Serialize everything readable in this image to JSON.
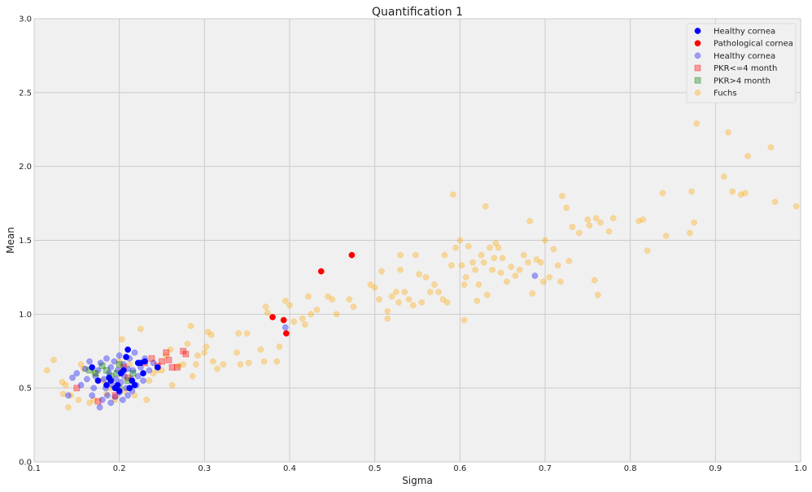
{
  "chart_data": {
    "type": "scatter",
    "title": "Quantification 1",
    "xlabel": "Sigma",
    "ylabel": "Mean",
    "xlim": [
      0.1,
      1.0
    ],
    "ylim": [
      0.0,
      3.0
    ],
    "xticks": [
      "0.1",
      "0.2",
      "0.3",
      "0.4",
      "0.5",
      "0.6",
      "0.7",
      "0.8",
      "0.9",
      "1.0"
    ],
    "yticks": [
      "0.0",
      "0.5",
      "1.0",
      "1.5",
      "2.0",
      "2.5",
      "3.0"
    ],
    "grid": true,
    "legend_position": "top-right",
    "background": "#f0f0f0",
    "series": [
      {
        "name": "Healthy cornea",
        "color": "#0000ff",
        "marker": "circle",
        "opacity": 1.0,
        "points": [
          [
            0.168,
            0.64
          ],
          [
            0.175,
            0.55
          ],
          [
            0.185,
            0.52
          ],
          [
            0.19,
            0.55
          ],
          [
            0.195,
            0.5
          ],
          [
            0.2,
            0.48
          ],
          [
            0.205,
            0.62
          ],
          [
            0.208,
            0.71
          ],
          [
            0.21,
            0.76
          ],
          [
            0.215,
            0.55
          ],
          [
            0.218,
            0.52
          ],
          [
            0.222,
            0.67
          ],
          [
            0.225,
            0.67
          ],
          [
            0.228,
            0.6
          ],
          [
            0.23,
            0.68
          ],
          [
            0.245,
            0.64
          ],
          [
            0.198,
            0.52
          ],
          [
            0.188,
            0.57
          ],
          [
            0.212,
            0.5
          ],
          [
            0.202,
            0.6
          ]
        ]
      },
      {
        "name": "Pathological cornea",
        "color": "#ff0000",
        "marker": "circle",
        "opacity": 1.0,
        "points": [
          [
            0.38,
            0.98
          ],
          [
            0.393,
            0.96
          ],
          [
            0.396,
            0.87
          ],
          [
            0.437,
            1.29
          ],
          [
            0.473,
            1.4
          ]
        ]
      },
      {
        "name": "Healthy cornea",
        "color": "#0000ff",
        "marker": "circle",
        "opacity": 0.35,
        "points": [
          [
            0.14,
            0.45
          ],
          [
            0.145,
            0.57
          ],
          [
            0.15,
            0.6
          ],
          [
            0.155,
            0.52
          ],
          [
            0.16,
            0.63
          ],
          [
            0.162,
            0.56
          ],
          [
            0.165,
            0.68
          ],
          [
            0.168,
            0.45
          ],
          [
            0.17,
            0.5
          ],
          [
            0.172,
            0.58
          ],
          [
            0.175,
            0.62
          ],
          [
            0.177,
            0.37
          ],
          [
            0.178,
            0.67
          ],
          [
            0.18,
            0.42
          ],
          [
            0.182,
            0.56
          ],
          [
            0.184,
            0.5
          ],
          [
            0.185,
            0.7
          ],
          [
            0.186,
            0.45
          ],
          [
            0.188,
            0.6
          ],
          [
            0.19,
            0.64
          ],
          [
            0.19,
            0.4
          ],
          [
            0.192,
            0.52
          ],
          [
            0.194,
            0.68
          ],
          [
            0.195,
            0.44
          ],
          [
            0.196,
            0.56
          ],
          [
            0.198,
            0.62
          ],
          [
            0.2,
            0.47
          ],
          [
            0.2,
            0.72
          ],
          [
            0.202,
            0.54
          ],
          [
            0.204,
            0.42
          ],
          [
            0.205,
            0.66
          ],
          [
            0.206,
            0.58
          ],
          [
            0.208,
            0.5
          ],
          [
            0.21,
            0.63
          ],
          [
            0.21,
            0.45
          ],
          [
            0.212,
            0.7
          ],
          [
            0.214,
            0.56
          ],
          [
            0.215,
            0.48
          ],
          [
            0.216,
            0.62
          ],
          [
            0.218,
            0.74
          ],
          [
            0.22,
            0.52
          ],
          [
            0.222,
            0.58
          ],
          [
            0.225,
            0.64
          ],
          [
            0.228,
            0.55
          ],
          [
            0.23,
            0.7
          ],
          [
            0.235,
            0.62
          ],
          [
            0.24,
            0.67
          ],
          [
            0.395,
            0.91
          ],
          [
            0.688,
            1.26
          ]
        ]
      },
      {
        "name": "PKR<=4 month",
        "color": "#ff0000",
        "marker": "square",
        "opacity": 0.35,
        "points": [
          [
            0.15,
            0.5
          ],
          [
            0.175,
            0.41
          ],
          [
            0.195,
            0.45
          ],
          [
            0.205,
            0.64
          ],
          [
            0.23,
            0.67
          ],
          [
            0.238,
            0.7
          ],
          [
            0.245,
            0.65
          ],
          [
            0.25,
            0.68
          ],
          [
            0.255,
            0.74
          ],
          [
            0.258,
            0.69
          ],
          [
            0.262,
            0.64
          ],
          [
            0.268,
            0.64
          ],
          [
            0.275,
            0.75
          ],
          [
            0.278,
            0.73
          ],
          [
            0.21,
            0.57
          ]
        ]
      },
      {
        "name": "PKR>4 month",
        "color": "#008000",
        "marker": "square",
        "opacity": 0.35,
        "points": [
          [
            0.165,
            0.62
          ],
          [
            0.172,
            0.6
          ],
          [
            0.18,
            0.65
          ],
          [
            0.19,
            0.58
          ],
          [
            0.197,
            0.6
          ],
          [
            0.2,
            0.66
          ],
          [
            0.21,
            0.55
          ],
          [
            0.216,
            0.6
          ],
          [
            0.2,
            0.5
          ],
          [
            0.185,
            0.62
          ]
        ]
      },
      {
        "name": "Fuchs",
        "color": "#ffa500",
        "marker": "circle",
        "opacity": 0.35,
        "points": [
          [
            0.115,
            0.62
          ],
          [
            0.123,
            0.69
          ],
          [
            0.133,
            0.54
          ],
          [
            0.134,
            0.46
          ],
          [
            0.137,
            0.52
          ],
          [
            0.14,
            0.37
          ],
          [
            0.143,
            0.45
          ],
          [
            0.152,
            0.42
          ],
          [
            0.155,
            0.66
          ],
          [
            0.158,
            0.63
          ],
          [
            0.165,
            0.4
          ],
          [
            0.17,
            0.42
          ],
          [
            0.172,
            0.6
          ],
          [
            0.18,
            0.55
          ],
          [
            0.185,
            0.46
          ],
          [
            0.19,
            0.5
          ],
          [
            0.195,
            0.42
          ],
          [
            0.2,
            0.68
          ],
          [
            0.203,
            0.83
          ],
          [
            0.206,
            0.48
          ],
          [
            0.212,
            0.66
          ],
          [
            0.218,
            0.45
          ],
          [
            0.225,
            0.9
          ],
          [
            0.232,
            0.42
          ],
          [
            0.235,
            0.55
          ],
          [
            0.24,
            0.6
          ],
          [
            0.245,
            0.62
          ],
          [
            0.25,
            0.62
          ],
          [
            0.255,
            0.72
          ],
          [
            0.26,
            0.76
          ],
          [
            0.262,
            0.52
          ],
          [
            0.27,
            0.65
          ],
          [
            0.275,
            0.66
          ],
          [
            0.28,
            0.8
          ],
          [
            0.284,
            0.92
          ],
          [
            0.286,
            0.58
          ],
          [
            0.29,
            0.66
          ],
          [
            0.292,
            0.72
          ],
          [
            0.3,
            0.74
          ],
          [
            0.302,
            0.78
          ],
          [
            0.304,
            0.88
          ],
          [
            0.308,
            0.86
          ],
          [
            0.31,
            0.68
          ],
          [
            0.315,
            0.63
          ],
          [
            0.322,
            0.66
          ],
          [
            0.338,
            0.74
          ],
          [
            0.34,
            0.87
          ],
          [
            0.342,
            0.66
          ],
          [
            0.35,
            0.87
          ],
          [
            0.352,
            0.67
          ],
          [
            0.366,
            0.76
          ],
          [
            0.37,
            0.68
          ],
          [
            0.372,
            1.05
          ],
          [
            0.374,
            1.01
          ],
          [
            0.385,
            0.68
          ],
          [
            0.388,
            0.78
          ],
          [
            0.395,
            1.09
          ],
          [
            0.4,
            1.06
          ],
          [
            0.405,
            0.95
          ],
          [
            0.415,
            0.97
          ],
          [
            0.418,
            0.93
          ],
          [
            0.422,
            1.12
          ],
          [
            0.425,
            1.0
          ],
          [
            0.432,
            1.03
          ],
          [
            0.445,
            1.12
          ],
          [
            0.45,
            1.1
          ],
          [
            0.455,
            1.0
          ],
          [
            0.47,
            1.1
          ],
          [
            0.475,
            1.05
          ],
          [
            0.495,
            1.2
          ],
          [
            0.5,
            1.18
          ],
          [
            0.505,
            1.1
          ],
          [
            0.508,
            1.29
          ],
          [
            0.515,
            0.97
          ],
          [
            0.515,
            1.02
          ],
          [
            0.52,
            1.12
          ],
          [
            0.525,
            1.15
          ],
          [
            0.528,
            1.08
          ],
          [
            0.53,
            1.3
          ],
          [
            0.53,
            1.4
          ],
          [
            0.535,
            1.15
          ],
          [
            0.54,
            1.1
          ],
          [
            0.545,
            1.06
          ],
          [
            0.548,
            1.4
          ],
          [
            0.552,
            1.27
          ],
          [
            0.555,
            1.08
          ],
          [
            0.56,
            1.25
          ],
          [
            0.565,
            1.15
          ],
          [
            0.57,
            1.2
          ],
          [
            0.575,
            1.15
          ],
          [
            0.58,
            1.1
          ],
          [
            0.582,
            1.4
          ],
          [
            0.585,
            1.08
          ],
          [
            0.59,
            1.33
          ],
          [
            0.592,
            1.81
          ],
          [
            0.595,
            1.45
          ],
          [
            0.6,
            1.5
          ],
          [
            0.602,
            1.33
          ],
          [
            0.605,
            0.96
          ],
          [
            0.605,
            1.2
          ],
          [
            0.607,
            1.25
          ],
          [
            0.61,
            1.46
          ],
          [
            0.615,
            1.35
          ],
          [
            0.618,
            1.3
          ],
          [
            0.62,
            1.09
          ],
          [
            0.622,
            1.2
          ],
          [
            0.625,
            1.4
          ],
          [
            0.628,
            1.35
          ],
          [
            0.63,
            1.73
          ],
          [
            0.632,
            1.13
          ],
          [
            0.635,
            1.45
          ],
          [
            0.638,
            1.3
          ],
          [
            0.64,
            1.38
          ],
          [
            0.642,
            1.48
          ],
          [
            0.645,
            1.45
          ],
          [
            0.648,
            1.28
          ],
          [
            0.65,
            1.38
          ],
          [
            0.655,
            1.22
          ],
          [
            0.66,
            1.32
          ],
          [
            0.665,
            1.26
          ],
          [
            0.67,
            1.3
          ],
          [
            0.675,
            1.4
          ],
          [
            0.68,
            1.35
          ],
          [
            0.682,
            1.63
          ],
          [
            0.685,
            1.14
          ],
          [
            0.69,
            1.37
          ],
          [
            0.695,
            1.35
          ],
          [
            0.698,
            1.22
          ],
          [
            0.7,
            1.5
          ],
          [
            0.705,
            1.25
          ],
          [
            0.71,
            1.44
          ],
          [
            0.715,
            1.33
          ],
          [
            0.718,
            1.22
          ],
          [
            0.72,
            1.8
          ],
          [
            0.725,
            1.72
          ],
          [
            0.728,
            1.36
          ],
          [
            0.732,
            1.59
          ],
          [
            0.74,
            1.55
          ],
          [
            0.75,
            1.64
          ],
          [
            0.752,
            1.6
          ],
          [
            0.758,
            1.23
          ],
          [
            0.76,
            1.65
          ],
          [
            0.762,
            1.13
          ],
          [
            0.765,
            1.62
          ],
          [
            0.775,
            1.56
          ],
          [
            0.78,
            1.65
          ],
          [
            0.81,
            1.63
          ],
          [
            0.815,
            1.64
          ],
          [
            0.82,
            1.43
          ],
          [
            0.838,
            1.82
          ],
          [
            0.842,
            1.53
          ],
          [
            0.87,
            1.55
          ],
          [
            0.872,
            1.83
          ],
          [
            0.875,
            1.62
          ],
          [
            0.878,
            2.29
          ],
          [
            0.91,
            1.93
          ],
          [
            0.915,
            2.23
          ],
          [
            0.92,
            1.83
          ],
          [
            0.93,
            1.81
          ],
          [
            0.935,
            1.82
          ],
          [
            0.938,
            2.07
          ],
          [
            0.965,
            2.13
          ],
          [
            0.97,
            1.76
          ],
          [
            0.995,
            1.73
          ]
        ]
      }
    ]
  }
}
